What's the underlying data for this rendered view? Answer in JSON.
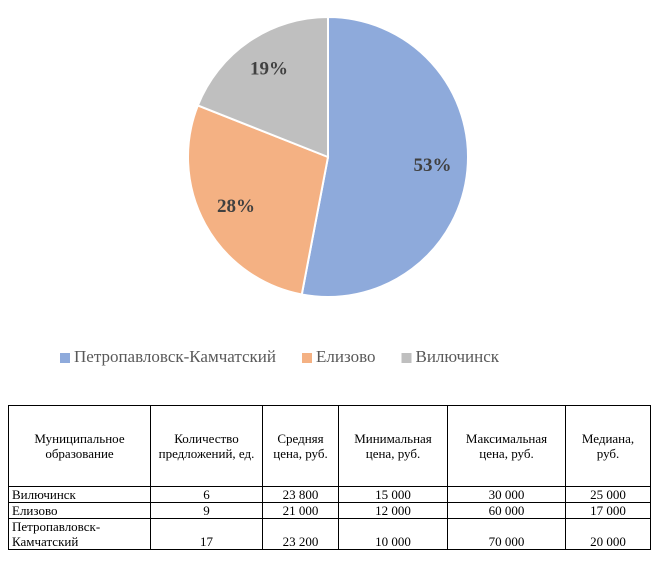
{
  "chart_data": {
    "type": "pie",
    "categories": [
      "Петропавловск-Камчатский",
      "Елизово",
      "Вилючинск"
    ],
    "values": [
      53,
      28,
      19
    ],
    "value_labels": [
      "53%",
      "28%",
      "19%"
    ],
    "colors": [
      "#8eaadb",
      "#f4b183",
      "#bfbfbf"
    ],
    "legend": "bottom"
  },
  "table": {
    "header": [
      "Муниципальное образование",
      "Количество предложений, ед.",
      "Средняя цена, руб.",
      "Минимальная цена, руб.",
      "Максимальная цена, руб.",
      "Медиана, руб."
    ],
    "rows": [
      [
        "Вилючинск",
        "6",
        "23 800",
        "15 000",
        "30 000",
        "25 000"
      ],
      [
        "Елизово",
        "9",
        "21 000",
        "12 000",
        "60 000",
        "17 000"
      ],
      [
        "Петропавловск-Камчатский",
        "17",
        "23 200",
        "10 000",
        "70 000",
        "20 000"
      ]
    ]
  }
}
